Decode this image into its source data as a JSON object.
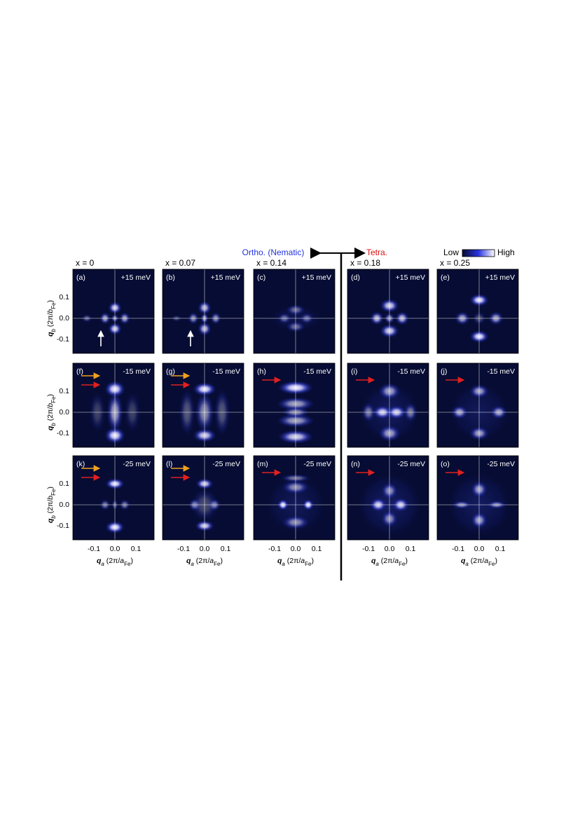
{
  "header": {
    "ortho_label": "Ortho. (Nematic)",
    "tetra_label": "Tetra.",
    "colorbar_low": "Low",
    "colorbar_high": "High"
  },
  "columns": [
    "x = 0",
    "x = 0.07",
    "x = 0.14",
    "x = 0.18",
    "x = 0.25"
  ],
  "panels": [
    [
      {
        "label": "(a)",
        "energy": "+15 meV"
      },
      {
        "label": "(b)",
        "energy": "+15 meV"
      },
      {
        "label": "(c)",
        "energy": "+15 meV"
      },
      {
        "label": "(d)",
        "energy": "+15 meV"
      },
      {
        "label": "(e)",
        "energy": "+15 meV"
      }
    ],
    [
      {
        "label": "(f)",
        "energy": "-15 meV"
      },
      {
        "label": "(g)",
        "energy": "-15 meV"
      },
      {
        "label": "(h)",
        "energy": "-15 meV"
      },
      {
        "label": "(i)",
        "energy": "-15 meV"
      },
      {
        "label": "(j)",
        "energy": "-15 meV"
      }
    ],
    [
      {
        "label": "(k)",
        "energy": "-25 meV"
      },
      {
        "label": "(l)",
        "energy": "-25 meV"
      },
      {
        "label": "(m)",
        "energy": "-25 meV"
      },
      {
        "label": "(n)",
        "energy": "-25 meV"
      },
      {
        "label": "(o)",
        "energy": "-25 meV"
      }
    ]
  ],
  "y_axis": {
    "label_parts": [
      "q",
      "b",
      " (2π/",
      "b",
      "Fe",
      ")"
    ],
    "ticks": [
      "0.1",
      "0.0",
      "-0.1"
    ]
  },
  "x_axis": {
    "label_parts": [
      "q",
      "a",
      " (2π/",
      "a",
      "Fe",
      ")"
    ],
    "ticks": [
      "-0.1",
      "0.0",
      "0.1"
    ]
  }
}
